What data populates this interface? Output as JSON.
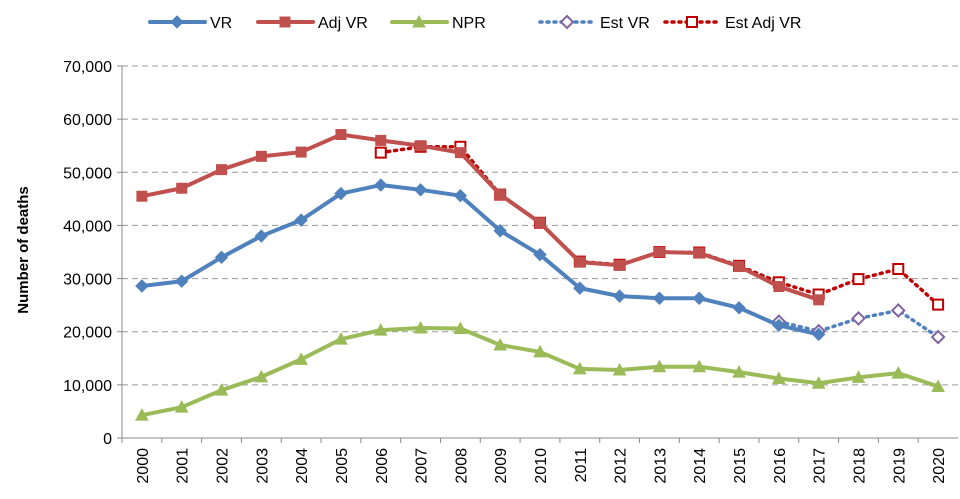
{
  "chart_data": {
    "type": "line",
    "y_label": "Number of deaths",
    "categories": [
      "2000",
      "2001",
      "2002",
      "2003",
      "2004",
      "2005",
      "2006",
      "2007",
      "2008",
      "2009",
      "2010",
      "2011",
      "2012",
      "2013",
      "2014",
      "2015",
      "2016",
      "2017",
      "2018",
      "2019",
      "2020"
    ],
    "series": [
      {
        "name": "VR",
        "color": "#4f81bd",
        "marker": "diamond",
        "marker_color": "#4f81bd",
        "hollow": false,
        "dotted": false,
        "values": [
          28600,
          29500,
          34000,
          38000,
          41000,
          46000,
          47600,
          46700,
          45600,
          39000,
          34500,
          28200,
          26700,
          26300,
          26300,
          24500,
          21200,
          19500,
          null,
          null,
          null
        ]
      },
      {
        "name": "Adj VR",
        "color": "#c0504d",
        "marker": "square",
        "marker_color": "#c0504d",
        "hollow": false,
        "dotted": false,
        "values": [
          45500,
          47000,
          50500,
          53000,
          53800,
          57100,
          56000,
          55000,
          53700,
          45800,
          40500,
          33100,
          32500,
          35000,
          34800,
          32300,
          28500,
          26000,
          null,
          null,
          null
        ]
      },
      {
        "name": "NPR",
        "color": "#9bbb59",
        "marker": "triangle",
        "marker_color": "#9bbb59",
        "hollow": false,
        "dotted": false,
        "values": [
          4300,
          5800,
          9000,
          11500,
          14800,
          18600,
          20300,
          20700,
          20600,
          17500,
          16200,
          13000,
          12800,
          13400,
          13400,
          12400,
          11200,
          10300,
          11400,
          12200,
          9700
        ]
      },
      {
        "name": "Est VR",
        "color": "#4f81bd",
        "marker": "diamond",
        "marker_color": "#8064a2",
        "hollow": true,
        "dotted": true,
        "values": [
          null,
          null,
          null,
          null,
          null,
          null,
          null,
          null,
          null,
          null,
          null,
          null,
          null,
          null,
          null,
          null,
          21900,
          20100,
          22500,
          24000,
          19000
        ]
      },
      {
        "name": "Est Adj VR",
        "color": "#c00000",
        "marker": "square",
        "marker_color": "#c00000",
        "hollow": true,
        "dotted": true,
        "values": [
          null,
          null,
          null,
          null,
          null,
          null,
          53700,
          54800,
          54800,
          45800,
          40500,
          33200,
          32600,
          35000,
          34900,
          32400,
          29300,
          27000,
          29900,
          31800,
          25100
        ]
      }
    ],
    "ylim": [
      0,
      70000
    ],
    "yticks": [
      0,
      {
        "value": 10000,
        "label": "10,000"
      },
      {
        "value": 20000,
        "label": "20,000"
      },
      {
        "value": 30000,
        "label": "30,000"
      },
      {
        "value": 40000,
        "label": "40,000"
      },
      {
        "value": 50000,
        "label": "50,000"
      },
      {
        "value": 60000,
        "label": "60,000"
      },
      {
        "value": 70000,
        "label": "70,000"
      }
    ],
    "grid": true,
    "legend": "top"
  }
}
